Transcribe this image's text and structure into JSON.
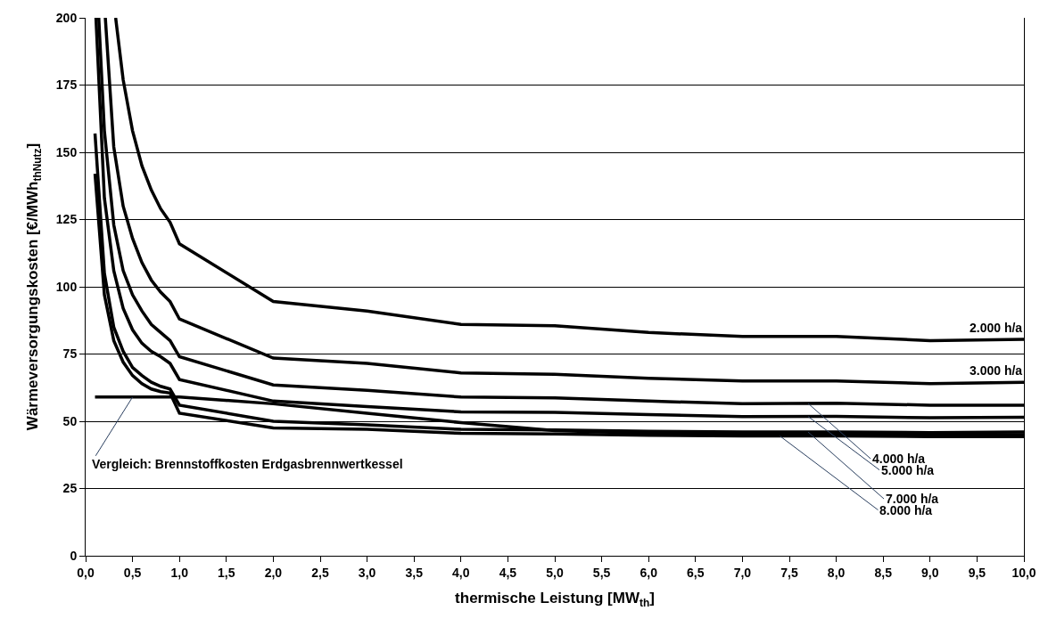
{
  "chart_data": {
    "type": "line",
    "xlabel": "thermische Leistung [MW$_{th}$]",
    "ylabel": "Wärmeversorgungskosten [€/MWh$_{thNutz}$]",
    "xlim": [
      0,
      10
    ],
    "ylim": [
      0,
      200
    ],
    "xticks": [
      {
        "value": 0,
        "label": "0,0"
      },
      {
        "value": 0.5,
        "label": "0,5"
      },
      {
        "value": 1,
        "label": "1,0"
      },
      {
        "value": 1.5,
        "label": "1,5"
      },
      {
        "value": 2,
        "label": "2,0"
      },
      {
        "value": 2.5,
        "label": "2,5"
      },
      {
        "value": 3,
        "label": "3,0"
      },
      {
        "value": 3.5,
        "label": "3,5"
      },
      {
        "value": 4,
        "label": "4,0"
      },
      {
        "value": 4.5,
        "label": "4,5"
      },
      {
        "value": 5,
        "label": "5,0"
      },
      {
        "value": 5.5,
        "label": "5,5"
      },
      {
        "value": 6,
        "label": "6,0"
      },
      {
        "value": 6.5,
        "label": "6,5"
      },
      {
        "value": 7,
        "label": "7,0"
      },
      {
        "value": 7.5,
        "label": "7,5"
      },
      {
        "value": 8,
        "label": "8,0"
      },
      {
        "value": 8.5,
        "label": "8,5"
      },
      {
        "value": 9,
        "label": "9,0"
      },
      {
        "value": 9.5,
        "label": "9,5"
      },
      {
        "value": 10,
        "label": "10,0"
      }
    ],
    "yticks": [
      0,
      25,
      50,
      75,
      100,
      125,
      150,
      175,
      200
    ],
    "grid": "y",
    "legend": false,
    "marker": "none",
    "line_style": "solid",
    "series": [
      {
        "name": "2.000 h/a",
        "color": "#000000",
        "x": [
          0.32,
          0.4,
          0.5,
          0.6,
          0.7,
          0.8,
          0.9,
          1,
          2,
          3,
          4,
          5,
          6,
          7,
          8,
          9,
          10
        ],
        "values": [
          200,
          177,
          158,
          145,
          136,
          129,
          124,
          116,
          94.5,
          91,
          86,
          85.5,
          83,
          81.5,
          81.5,
          80,
          80.5
        ]
      },
      {
        "name": "3.000 h/a",
        "color": "#000000",
        "x": [
          0.21,
          0.3,
          0.4,
          0.5,
          0.6,
          0.7,
          0.8,
          0.9,
          1,
          2,
          3,
          4,
          5,
          6,
          7,
          8,
          9,
          10
        ],
        "values": [
          200,
          152,
          130,
          118,
          109,
          102.5,
          98,
          94.5,
          88,
          73.5,
          71.5,
          68,
          67.5,
          66,
          65,
          65,
          64,
          64.5
        ]
      },
      {
        "name": "4.000 h/a",
        "color": "#000000",
        "x": [
          0.14,
          0.2,
          0.3,
          0.4,
          0.5,
          0.6,
          0.7,
          0.8,
          0.9,
          1,
          2,
          3,
          4,
          5,
          6,
          7,
          8,
          9,
          10
        ],
        "values": [
          200,
          158,
          123,
          106,
          97,
          91,
          86,
          83,
          80,
          74,
          63.5,
          61.5,
          59,
          58.7,
          57.5,
          56.5,
          56.7,
          56,
          56
        ]
      },
      {
        "name": "5.000 h/a",
        "color": "#000000",
        "x": [
          0.11,
          0.2,
          0.3,
          0.4,
          0.5,
          0.6,
          0.7,
          0.8,
          0.9,
          1,
          2,
          3,
          4,
          5,
          6,
          7,
          8,
          9,
          10
        ],
        "values": [
          200,
          133,
          106,
          92,
          84,
          79,
          76,
          74,
          71.5,
          65.5,
          57.5,
          55.5,
          53.5,
          53.3,
          52.5,
          51.7,
          51.8,
          51.3,
          51.5
        ]
      },
      {
        "name": "7.000 h/a",
        "color": "#000000",
        "x": [
          0.1,
          0.2,
          0.3,
          0.4,
          0.5,
          0.6,
          0.7,
          0.8,
          0.9,
          1,
          2,
          3,
          4,
          5,
          6,
          7,
          8,
          9,
          10
        ],
        "values": [
          157,
          105,
          85,
          76,
          70,
          67,
          64.5,
          63,
          62,
          56,
          50,
          48.7,
          47,
          46.8,
          46.3,
          46,
          46,
          45.8,
          46
        ]
      },
      {
        "name": "8.000 h/a",
        "color": "#000000",
        "x": [
          0.1,
          0.2,
          0.3,
          0.4,
          0.5,
          0.6,
          0.7,
          0.8,
          0.9,
          1,
          2,
          3,
          4,
          5,
          6,
          7,
          8,
          9,
          10
        ],
        "values": [
          142,
          97,
          80,
          72,
          67,
          64,
          62,
          61,
          60.5,
          53,
          47.5,
          47,
          45.5,
          45.3,
          44.8,
          44.5,
          44.5,
          44.3,
          44.3
        ]
      },
      {
        "name": "Vergleich: Brennstoffkosten Erdgasbrennwertkessel",
        "color": "#000000",
        "x": [
          0.1,
          1,
          2,
          3,
          4,
          5,
          6,
          7,
          8,
          9,
          10
        ],
        "values": [
          59,
          59,
          56.5,
          53,
          49.5,
          46.5,
          45.5,
          45.2,
          45.2,
          45,
          45
        ]
      }
    ]
  }
}
